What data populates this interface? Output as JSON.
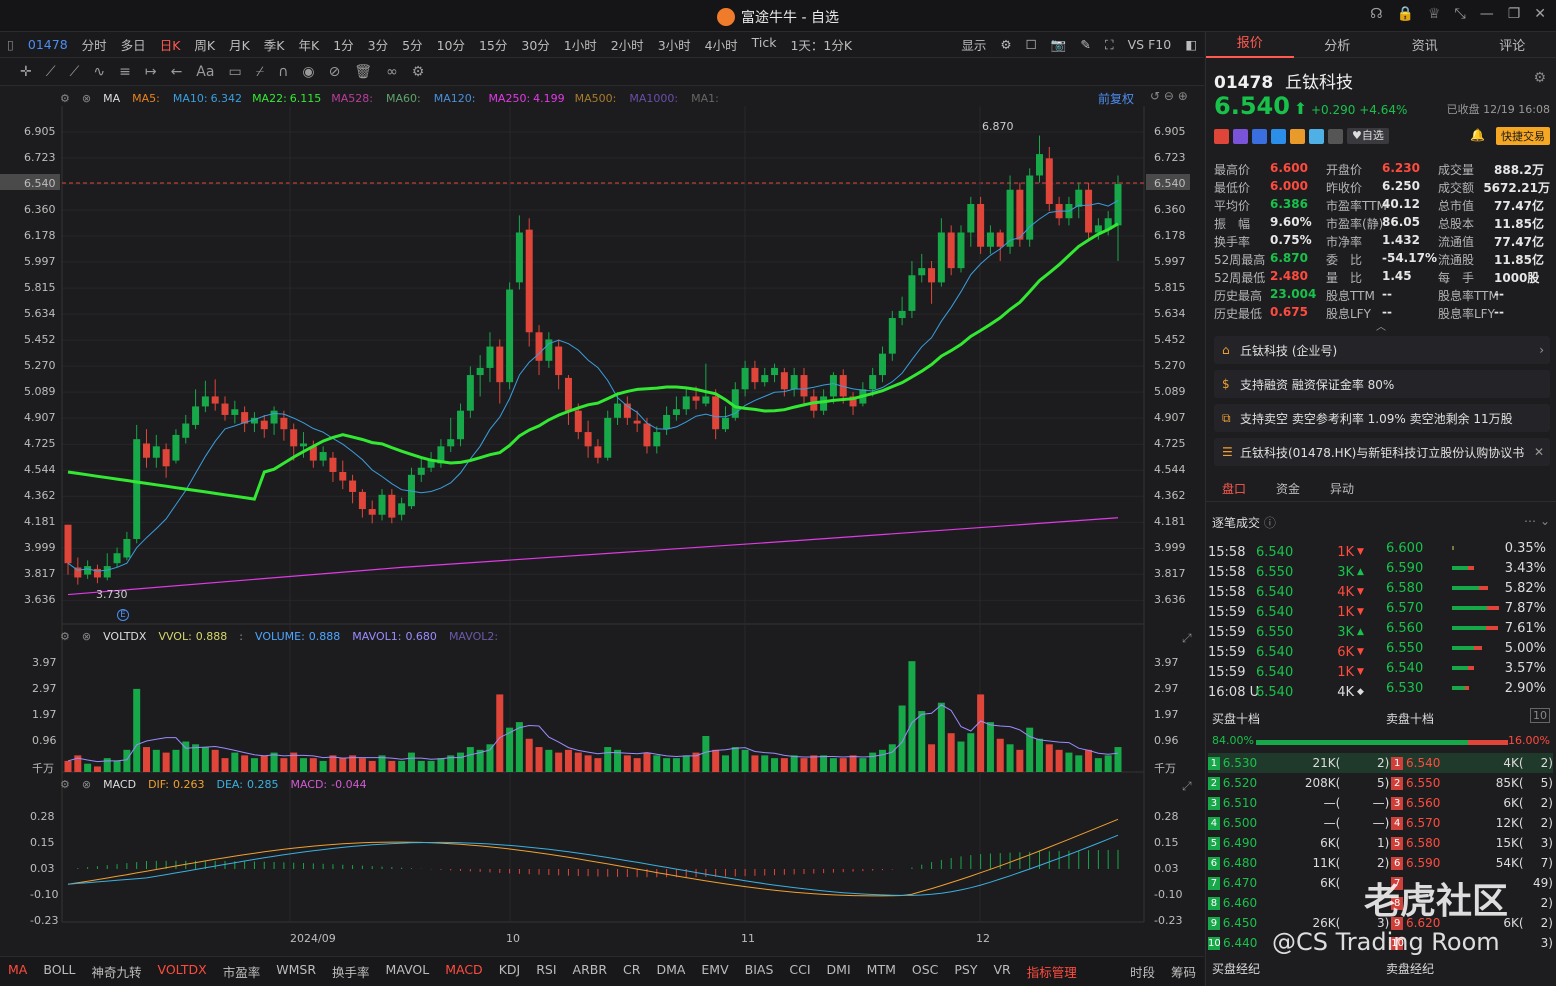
{
  "window": {
    "title": "富途牛牛 - 自选"
  },
  "toolbar1": {
    "code": "01478",
    "periods": [
      "分时",
      "多日",
      "日K",
      "周K",
      "月K",
      "季K",
      "年K",
      "1分",
      "3分",
      "5分",
      "10分",
      "15分",
      "30分",
      "1小时",
      "2小时",
      "3小时",
      "4小时",
      "Tick",
      "1天：1分K"
    ],
    "active_period": "日K",
    "display": "显示",
    "vs": "VS F10"
  },
  "ma_row": {
    "name": "MA",
    "items": [
      {
        "label": "MA5:",
        "value": "",
        "color": "#e8821f"
      },
      {
        "label": "MA10:",
        "value": "6.342",
        "color": "#3a9ede"
      },
      {
        "label": "MA22:",
        "value": "6.115",
        "color": "#33e833"
      },
      {
        "label": "MA528:",
        "value": "",
        "color": "#b93d9c"
      },
      {
        "label": "MA60:",
        "value": "",
        "color": "#5ea36a"
      },
      {
        "label": "MA120:",
        "value": "",
        "color": "#4a8fd9"
      },
      {
        "label": "MA250:",
        "value": "4.199",
        "color": "#e03ae6"
      },
      {
        "label": "MA500:",
        "value": "",
        "color": "#a77b2a"
      },
      {
        "label": "MA1000:",
        "value": "",
        "color": "#6a4ea8"
      },
      {
        "label": "MA1:",
        "value": "",
        "color": "#666"
      }
    ],
    "adjust": "前复权"
  },
  "price_axis": [
    "6.905",
    "6.723",
    "6.540",
    "6.360",
    "6.178",
    "5.997",
    "5.815",
    "5.634",
    "5.452",
    "5.270",
    "5.089",
    "4.907",
    "4.725",
    "4.544",
    "4.362",
    "4.181",
    "3.999",
    "3.817",
    "3.636"
  ],
  "price_axis_right": [
    "6.905",
    "6.723",
    "6.540",
    "6.360",
    "6.178",
    "5.997",
    "5.815",
    "5.634",
    "5.452",
    "5.270",
    "5.089",
    "4.907",
    "4.725",
    "4.544",
    "4.362",
    "4.181",
    "3.999",
    "3.817",
    "3.636"
  ],
  "price_annot": {
    "high": "6.870",
    "low": "3.730",
    "current": "6.540"
  },
  "vol_row": {
    "name": "VOLTDX",
    "vvol_label": "VVOL:",
    "vvol": "0.888",
    "sep": ":",
    "volume_label": "VOLUME:",
    "volume": "0.888",
    "mavol1_label": "MAVOL1:",
    "mavol1": "0.680",
    "mavol2_label": "MAVOL2:"
  },
  "vol_axis": [
    "3.97",
    "2.97",
    "1.97",
    "0.96",
    "千万"
  ],
  "macd_row": {
    "name": "MACD",
    "dif_label": "DIF:",
    "dif": "0.263",
    "dea_label": "DEA:",
    "dea": "0.285",
    "macd_label": "MACD:",
    "macd": "-0.044"
  },
  "macd_axis": [
    "0.28",
    "0.15",
    "0.03",
    "-0.10",
    "-0.23"
  ],
  "date_axis": [
    "2024/09",
    "10",
    "11",
    "12"
  ],
  "bottombar": {
    "items": [
      "MA",
      "BOLL",
      "神奇九转",
      "VOLTDX",
      "市盈率",
      "WMSR",
      "换手率",
      "MAVOL",
      "MACD",
      "KDJ",
      "RSI",
      "ARBR",
      "CR",
      "DMA",
      "EMV",
      "BIAS",
      "CCI",
      "DMI",
      "MTM",
      "OSC",
      "PSY",
      "VR",
      "指标管理"
    ],
    "active": [
      "MA",
      "VOLTDX",
      "MACD",
      "指标管理"
    ],
    "right1": "时段",
    "right2": "筹码"
  },
  "right": {
    "tabs": [
      "报价",
      "分析",
      "资讯",
      "评论"
    ],
    "active_tab": "报价",
    "code": "01478",
    "name": "丘钛科技",
    "price": "6.540",
    "arrow": "⬆",
    "change": "+0.290",
    "change_pct": "+4.64%",
    "status": "已收盘 12/19 16:08",
    "watch": "自选",
    "trade": "快捷交易",
    "stats": [
      [
        {
          "k": "最高价",
          "v": "6.600",
          "c": "red"
        },
        {
          "k": "开盘价",
          "v": "6.230",
          "c": "red"
        },
        {
          "k": "成交量",
          "v": "888.2万",
          "c": ""
        }
      ],
      [
        {
          "k": "最低价",
          "v": "6.000",
          "c": "red"
        },
        {
          "k": "昨收价",
          "v": "6.250",
          "c": ""
        },
        {
          "k": "成交额",
          "v": "5672.21万",
          "c": ""
        }
      ],
      [
        {
          "k": "平均价",
          "v": "6.386",
          "c": "green"
        },
        {
          "k": "市盈率TTM",
          "v": "40.12",
          "c": ""
        },
        {
          "k": "总市值",
          "v": "77.47亿",
          "c": ""
        }
      ],
      [
        {
          "k": "振　幅",
          "v": "9.60%",
          "c": ""
        },
        {
          "k": "市盈率(静)",
          "v": "86.05",
          "c": ""
        },
        {
          "k": "总股本",
          "v": "11.85亿",
          "c": ""
        }
      ],
      [
        {
          "k": "换手率",
          "v": "0.75%",
          "c": ""
        },
        {
          "k": "市净率",
          "v": "1.432",
          "c": ""
        },
        {
          "k": "流通值",
          "v": "77.47亿",
          "c": ""
        }
      ],
      [
        {
          "k": "52周最高",
          "v": "6.870",
          "c": "green"
        },
        {
          "k": "委　比",
          "v": "-54.17%",
          "c": ""
        },
        {
          "k": "流通股",
          "v": "11.85亿",
          "c": ""
        }
      ],
      [
        {
          "k": "52周最低",
          "v": "2.480",
          "c": "red"
        },
        {
          "k": "量　比",
          "v": "1.45",
          "c": ""
        },
        {
          "k": "每　手",
          "v": "1000股",
          "c": ""
        }
      ],
      [
        {
          "k": "历史最高",
          "v": "23.004",
          "c": "green"
        },
        {
          "k": "股息TTM",
          "v": "--",
          "c": ""
        },
        {
          "k": "股息率TTM",
          "v": "--",
          "c": ""
        }
      ],
      [
        {
          "k": "历史最低",
          "v": "0.675",
          "c": "red"
        },
        {
          "k": "股息LFY",
          "v": "--",
          "c": ""
        },
        {
          "k": "股息率LFY",
          "v": "--",
          "c": ""
        }
      ]
    ],
    "info": [
      "丘钛科技 (企业号)",
      "支持融资 融资保证金率 80%",
      "支持卖空 卖空参考利率 1.09% 卖空池剩余 11万股",
      "丘钛科技(01478.HK)与新钜科技订立股份认购协议书"
    ],
    "subtabs": [
      "盘口",
      "资金",
      "异动"
    ],
    "active_subtab": "盘口",
    "ticks_title": "逐笔成交",
    "ticks": [
      {
        "t": "15:58",
        "p": "6.540",
        "v": "1K",
        "d": "down"
      },
      {
        "t": "15:58",
        "p": "6.550",
        "v": "3K",
        "d": "up"
      },
      {
        "t": "15:58",
        "p": "6.540",
        "v": "4K",
        "d": "down"
      },
      {
        "t": "15:59",
        "p": "6.540",
        "v": "1K",
        "d": "down"
      },
      {
        "t": "15:59",
        "p": "6.550",
        "v": "3K",
        "d": "up"
      },
      {
        "t": "15:59",
        "p": "6.540",
        "v": "6K",
        "d": "down"
      },
      {
        "t": "15:59",
        "p": "6.540",
        "v": "1K",
        "d": "down"
      },
      {
        "t": "16:08 U",
        "p": "6.540",
        "v": "4K",
        "d": "neutral"
      }
    ],
    "dist": [
      {
        "p": "6.600",
        "pct": "0.35%"
      },
      {
        "p": "6.590",
        "pct": "3.43%"
      },
      {
        "p": "6.580",
        "pct": "5.82%"
      },
      {
        "p": "6.570",
        "pct": "7.87%"
      },
      {
        "p": "6.560",
        "pct": "7.61%"
      },
      {
        "p": "6.550",
        "pct": "5.00%"
      },
      {
        "p": "6.540",
        "pct": "3.57%"
      },
      {
        "p": "6.530",
        "pct": "2.90%"
      }
    ],
    "ob_buy_title": "买盘十档",
    "ob_sell_title": "卖盘十档",
    "buy_ratio": "84.00%",
    "sell_ratio": "16.00%",
    "ob": [
      {
        "bp": "6.530",
        "bv": "21K(",
        "bn": "2)",
        "sp": "6.540",
        "sv": "4K(",
        "sn": "2)"
      },
      {
        "bp": "6.520",
        "bv": "208K(",
        "bn": "5)",
        "sp": "6.550",
        "sv": "85K(",
        "sn": "5)"
      },
      {
        "bp": "6.510",
        "bv": "—(",
        "bn": "—)",
        "sp": "6.560",
        "sv": "6K(",
        "sn": "2)"
      },
      {
        "bp": "6.500",
        "bv": "—(",
        "bn": "—)",
        "sp": "6.570",
        "sv": "12K(",
        "sn": "2)"
      },
      {
        "bp": "6.490",
        "bv": "6K(",
        "bn": "1)",
        "sp": "6.580",
        "sv": "15K(",
        "sn": "3)"
      },
      {
        "bp": "6.480",
        "bv": "11K(",
        "bn": "2)",
        "sp": "6.590",
        "sv": "54K(",
        "sn": "7)"
      },
      {
        "bp": "6.470",
        "bv": "6K(",
        "bn": "",
        "sp": "",
        "sv": "",
        "sn": "49)"
      },
      {
        "bp": "6.460",
        "bv": "",
        "bn": "",
        "sp": "",
        "sv": "",
        "sn": "2)"
      },
      {
        "bp": "6.450",
        "bv": "26K(",
        "bn": "3)",
        "sp": "6.620",
        "sv": "6K(",
        "sn": "2)"
      },
      {
        "bp": "6.440",
        "bv": "",
        "bn": "",
        "sp": "",
        "sv": "",
        "sn": "3)"
      }
    ],
    "footer_buy": "买盘经纪",
    "footer_sell": "卖盘经纪",
    "watermark1": "老虎社区",
    "watermark2": "@CS Trading Room"
  }
}
